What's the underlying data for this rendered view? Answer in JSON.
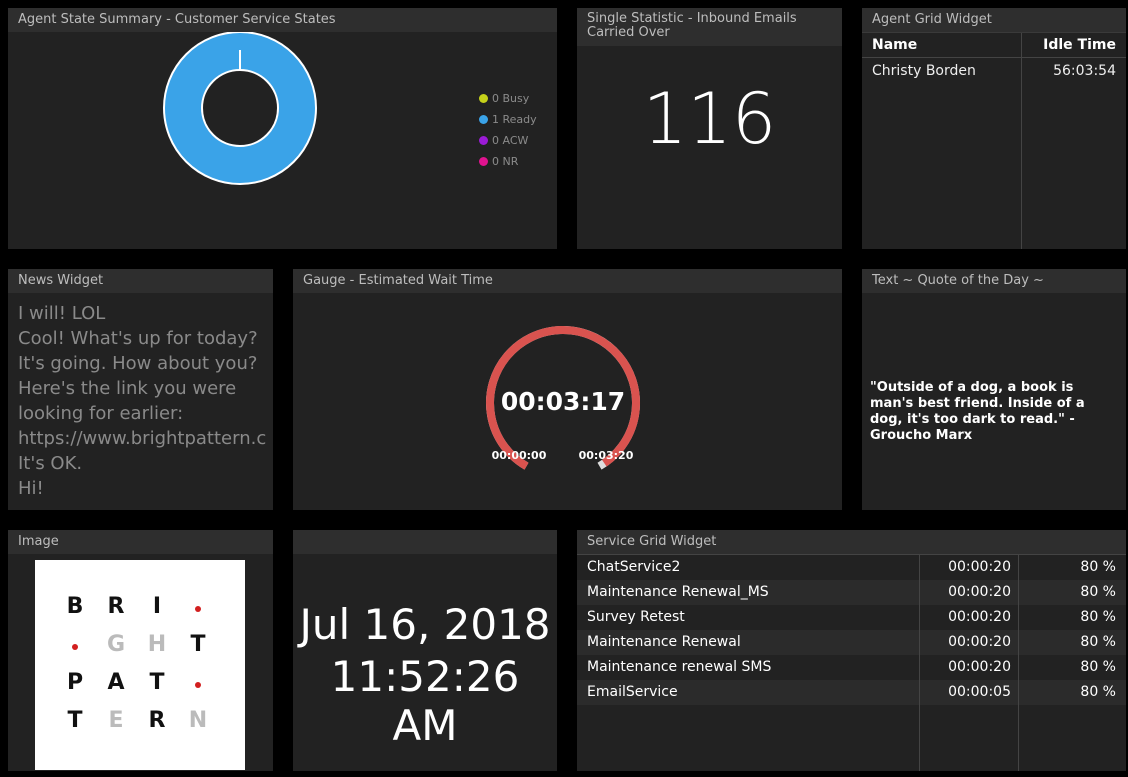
{
  "agent_state": {
    "title": "Agent State Summary - Customer Service States",
    "legend": [
      {
        "label": "0 Busy",
        "color": "#c5d11a"
      },
      {
        "label": "1 Ready",
        "color": "#3aa3e8"
      },
      {
        "label": "0 ACW",
        "color": "#9b1bd6"
      },
      {
        "label": "0 NR",
        "color": "#e0138f"
      }
    ],
    "donut_color": "#3aa3e8"
  },
  "single_stat": {
    "title": "Single Statistic - Inbound Emails Carried Over",
    "value": "116"
  },
  "agent_grid": {
    "title": "Agent Grid Widget",
    "columns": [
      "Name",
      "Idle Time"
    ],
    "rows": [
      [
        "Christy Borden",
        "56:03:54"
      ]
    ]
  },
  "news": {
    "title": "News Widget",
    "lines": [
      "I will! LOL",
      "Cool! What's up for today?",
      "It's going. How about you?",
      "Here's the link you were",
      "looking for earlier:",
      "https://www.brightpattern.c",
      "It's OK.",
      "Hi!"
    ]
  },
  "gauge": {
    "title": "Gauge - Estimated Wait Time",
    "value": "00:03:17",
    "min_label": "00:00:00",
    "max_label": "00:03:20",
    "fraction": 0.985,
    "color": "#d9534f"
  },
  "quote": {
    "title": "Text ~ Quote of the Day ~",
    "text": "\"Outside of a dog, a book is man's best friend. Inside of a dog, it's too dark to read.\" - Groucho Marx"
  },
  "image_widget": {
    "title": "Image",
    "logo_rows": [
      [
        "B",
        "R",
        "I",
        "•"
      ],
      [
        "•",
        "G",
        "H",
        "T"
      ],
      [
        "P",
        "A",
        "T",
        "•"
      ],
      [
        "T",
        "E",
        "R",
        "N"
      ]
    ]
  },
  "clock": {
    "date": "Jul 16, 2018",
    "time": "11:52:26 AM"
  },
  "service_grid": {
    "title": "Service Grid Widget",
    "rows": [
      [
        "ChatService2",
        "00:00:20",
        "80 %"
      ],
      [
        "Maintenance Renewal_MS",
        "00:00:20",
        "80 %"
      ],
      [
        "Survey Retest",
        "00:00:20",
        "80 %"
      ],
      [
        "Maintenance Renewal",
        "00:00:20",
        "80 %"
      ],
      [
        "Maintenance renewal SMS",
        "00:00:20",
        "80 %"
      ],
      [
        "EmailService",
        "00:00:05",
        "80 %"
      ]
    ]
  }
}
